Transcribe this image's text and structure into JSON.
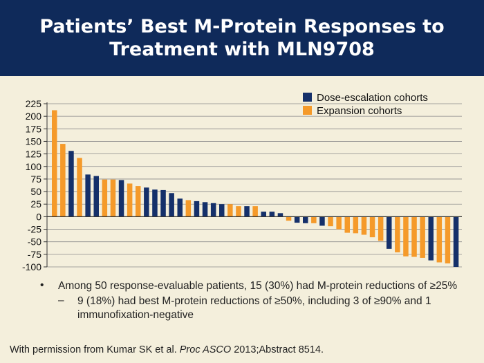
{
  "header": {
    "title": "Patients’ Best M-Protein Responses to Treatment with MLN9708"
  },
  "colors": {
    "header_bg": "#0f2a5a",
    "dose_escalation": "#15306a",
    "expansion": "#f59a2a",
    "background": "#f4efdc",
    "grid": "#8a8a8a"
  },
  "chart_data": {
    "type": "bar",
    "title": "",
    "xlabel": "",
    "ylabel": "",
    "ylim": [
      -100,
      225
    ],
    "yticks": [
      225,
      200,
      175,
      150,
      125,
      100,
      75,
      50,
      25,
      0,
      -25,
      -50,
      -75,
      -100
    ],
    "grid": true,
    "legend_position": "top-right",
    "series": [
      {
        "name": "Dose-escalation cohorts",
        "color": "#15306a"
      },
      {
        "name": "Expansion cohorts",
        "color": "#f59a2a"
      }
    ],
    "bars": [
      {
        "value": 212,
        "series": 1
      },
      {
        "value": 145,
        "series": 1
      },
      {
        "value": 131,
        "series": 0
      },
      {
        "value": 117,
        "series": 1
      },
      {
        "value": 84,
        "series": 0
      },
      {
        "value": 81,
        "series": 0
      },
      {
        "value": 74,
        "series": 1
      },
      {
        "value": 74,
        "series": 1
      },
      {
        "value": 73,
        "series": 0
      },
      {
        "value": 66,
        "series": 1
      },
      {
        "value": 61,
        "series": 1
      },
      {
        "value": 58,
        "series": 0
      },
      {
        "value": 54,
        "series": 0
      },
      {
        "value": 53,
        "series": 0
      },
      {
        "value": 47,
        "series": 0
      },
      {
        "value": 36,
        "series": 0
      },
      {
        "value": 33,
        "series": 1
      },
      {
        "value": 31,
        "series": 0
      },
      {
        "value": 29,
        "series": 0
      },
      {
        "value": 27,
        "series": 0
      },
      {
        "value": 25,
        "series": 0
      },
      {
        "value": 25,
        "series": 1
      },
      {
        "value": 21,
        "series": 1
      },
      {
        "value": 21,
        "series": 0
      },
      {
        "value": 21,
        "series": 1
      },
      {
        "value": 10,
        "series": 0
      },
      {
        "value": 10,
        "series": 0
      },
      {
        "value": 7,
        "series": 0
      },
      {
        "value": -8,
        "series": 1
      },
      {
        "value": -12,
        "series": 0
      },
      {
        "value": -13,
        "series": 0
      },
      {
        "value": -13,
        "series": 1
      },
      {
        "value": -18,
        "series": 0
      },
      {
        "value": -19,
        "series": 1
      },
      {
        "value": -25,
        "series": 1
      },
      {
        "value": -32,
        "series": 1
      },
      {
        "value": -33,
        "series": 1
      },
      {
        "value": -36,
        "series": 1
      },
      {
        "value": -41,
        "series": 1
      },
      {
        "value": -48,
        "series": 1
      },
      {
        "value": -64,
        "series": 0
      },
      {
        "value": -71,
        "series": 1
      },
      {
        "value": -79,
        "series": 1
      },
      {
        "value": -80,
        "series": 1
      },
      {
        "value": -82,
        "series": 1
      },
      {
        "value": -87,
        "series": 0
      },
      {
        "value": -91,
        "series": 1
      },
      {
        "value": -93,
        "series": 1
      },
      {
        "value": -100,
        "series": 0
      }
    ]
  },
  "bullets": {
    "main": "Among 50 response-evaluable patients, 15 (30%) had M-protein reductions of ≥25%",
    "sub": "9 (18%) had best M-protein reductions of ≥50%, including 3 of ≥90% and 1 immunofixation-negative",
    "bullet_symbol": "•",
    "sub_symbol": "–"
  },
  "footer": {
    "prefix": "With permission from Kumar SK et al. ",
    "journal": "Proc ASCO",
    "suffix": " 2013;Abstract 8514."
  }
}
